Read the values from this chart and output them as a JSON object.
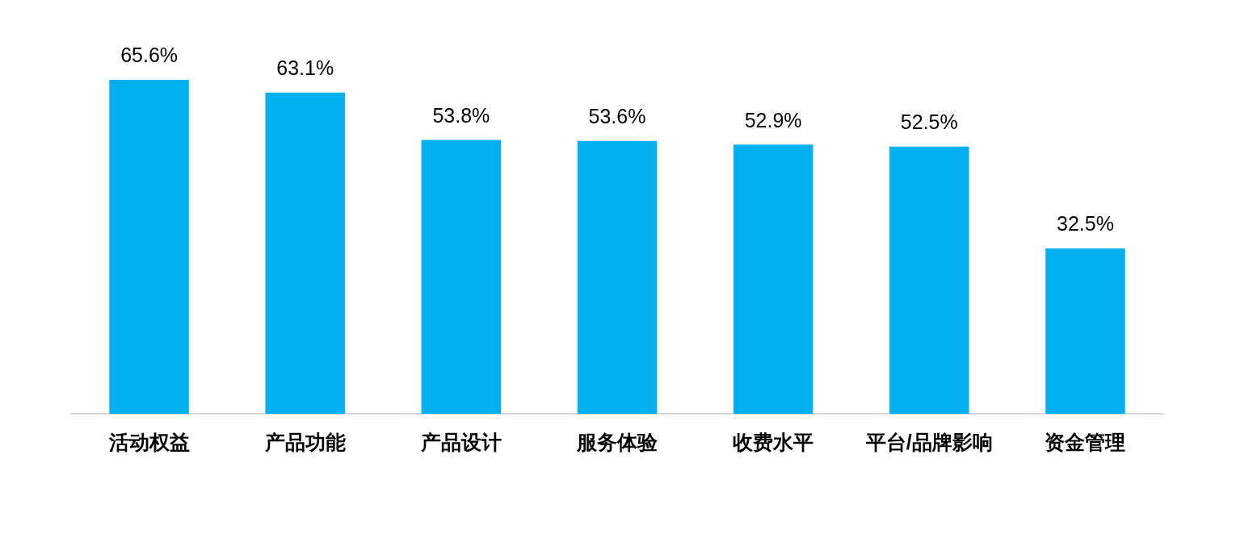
{
  "chart_data": {
    "type": "bar",
    "categories": [
      "活动权益",
      "产品功能",
      "产品设计",
      "服务体验",
      "收费水平",
      "平台/品牌影响",
      "资金管理"
    ],
    "values": [
      65.6,
      63.1,
      53.8,
      53.6,
      52.9,
      52.5,
      32.5
    ],
    "value_labels": [
      "65.6%",
      "63.1%",
      "53.8%",
      "53.6%",
      "52.9%",
      "52.5%",
      "32.5%"
    ],
    "color": "#00b0f0",
    "grid": false,
    "legend": false
  }
}
